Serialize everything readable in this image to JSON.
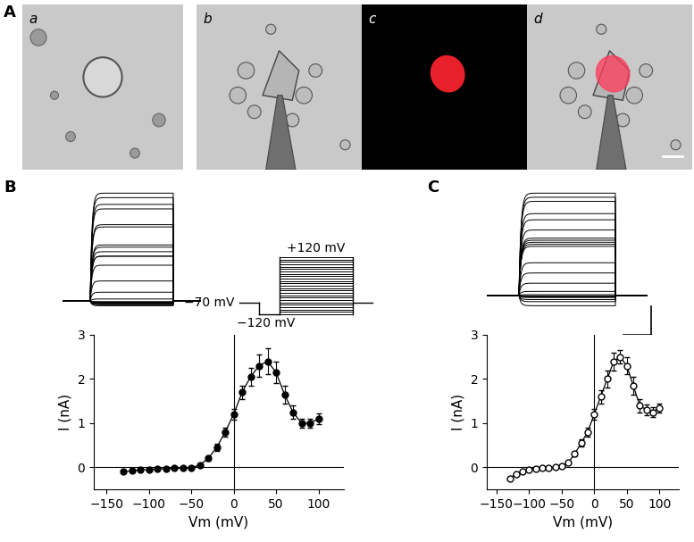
{
  "panels": {
    "A": "A",
    "B": "B",
    "C": "C",
    "images": [
      "a",
      "b",
      "c",
      "d"
    ]
  },
  "protocol": {
    "hold": -70,
    "prepulse": -120,
    "steps": [
      -120,
      -110,
      -100,
      -90,
      -80,
      -70,
      -60,
      -50,
      -40,
      -30,
      -20,
      -10,
      0,
      10,
      20,
      30,
      40,
      50,
      60,
      70,
      80,
      90,
      100,
      110,
      120
    ],
    "hold_label": "−70 mV",
    "prepulse_label": "−120 mV",
    "max_label": "+120 mV"
  },
  "chart_data": [
    {
      "type": "line",
      "panel": "B",
      "marker": "filled_circle",
      "color": "#000000",
      "x": [
        -130,
        -120,
        -110,
        -100,
        -90,
        -80,
        -70,
        -60,
        -50,
        -40,
        -30,
        -20,
        -10,
        0,
        10,
        20,
        30,
        40,
        50,
        60,
        70,
        80,
        90,
        100
      ],
      "values": [
        -0.1,
        -0.08,
        -0.06,
        -0.05,
        -0.04,
        -0.03,
        -0.02,
        -0.02,
        -0.01,
        0.05,
        0.2,
        0.45,
        0.8,
        1.2,
        1.7,
        2.05,
        2.3,
        2.4,
        2.15,
        1.65,
        1.25,
        1.0,
        1.0,
        1.1
      ],
      "errors": [
        0.02,
        0.02,
        0.02,
        0.02,
        0.02,
        0.02,
        0.02,
        0.02,
        0.02,
        0.03,
        0.05,
        0.08,
        0.1,
        0.12,
        0.15,
        0.2,
        0.25,
        0.3,
        0.25,
        0.2,
        0.15,
        0.1,
        0.1,
        0.12
      ],
      "x_label": "Vm (mV)",
      "y_label": "I (nA)",
      "xlim": [
        -165,
        130
      ],
      "ylim": [
        -0.5,
        3
      ],
      "xticks": [
        {
          "value": -150,
          "label": "−150"
        },
        {
          "value": -100,
          "label": "−100"
        },
        {
          "value": -50,
          "label": "−50"
        },
        0,
        50,
        100
      ],
      "yticks": [
        0,
        1,
        2,
        3
      ]
    },
    {
      "type": "line",
      "panel": "C",
      "marker": "open_circle",
      "color": "#000000",
      "x": [
        -130,
        -120,
        -110,
        -100,
        -90,
        -80,
        -70,
        -60,
        -50,
        -40,
        -30,
        -20,
        -10,
        0,
        10,
        20,
        30,
        40,
        50,
        60,
        70,
        80,
        90,
        100
      ],
      "values": [
        -0.25,
        -0.15,
        -0.1,
        -0.05,
        -0.03,
        -0.02,
        -0.01,
        0.0,
        0.02,
        0.1,
        0.3,
        0.55,
        0.8,
        1.2,
        1.6,
        2.0,
        2.4,
        2.5,
        2.3,
        1.85,
        1.4,
        1.3,
        1.25,
        1.35
      ],
      "errors": [
        0.03,
        0.02,
        0.02,
        0.02,
        0.02,
        0.02,
        0.02,
        0.02,
        0.02,
        0.03,
        0.05,
        0.08,
        0.1,
        0.12,
        0.15,
        0.2,
        0.2,
        0.15,
        0.2,
        0.2,
        0.15,
        0.12,
        0.12,
        0.1
      ],
      "x_label": "Vm (mV)",
      "y_label": "I (nA)",
      "xlim": [
        -165,
        130
      ],
      "ylim": [
        -0.5,
        3
      ],
      "xticks": [
        {
          "value": -150,
          "label": "−150"
        },
        {
          "value": -100,
          "label": "−100"
        },
        {
          "value": -50,
          "label": "−50"
        },
        0,
        50,
        100
      ],
      "yticks": [
        0,
        1,
        2,
        3
      ]
    }
  ]
}
